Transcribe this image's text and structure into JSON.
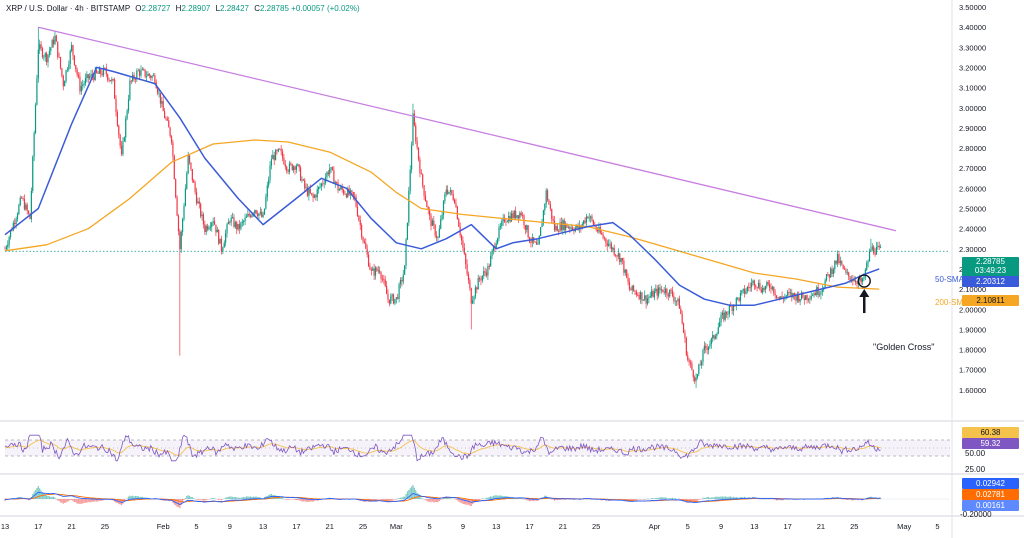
{
  "legend": {
    "symbol": "XRP / U.S. Dollar · 4h · BITSTAMP",
    "o_label": "O",
    "o": "2.28727",
    "h_label": "H",
    "h": "2.28907",
    "l_label": "L",
    "l": "2.28427",
    "c_label": "C",
    "c": "2.28785",
    "change": "+0.00057 (+0.02%)"
  },
  "price_tags": {
    "last_price": "2.28785",
    "countdown": "03:49:23",
    "sma50": "2.20312",
    "sma200": "2.10811"
  },
  "annotations": {
    "sma50": "50-SMA",
    "sma200": "200-SMA",
    "golden_cross": "\"Golden Cross\""
  },
  "rsi_tags": {
    "a": "60.38",
    "b": "59.32",
    "mid": "50.00",
    "low": "25.00"
  },
  "macd_tags": {
    "a": "0.02942",
    "b": "0.02781",
    "c": "0.00161",
    "low": "-0.20000"
  },
  "colors": {
    "up": "#089981",
    "down": "#f23645",
    "sma50": "#3a5bd9",
    "sma200": "#f5a623",
    "trendline": "#c77ee0",
    "rsi": "#7e57c2",
    "rsi_ma": "#f5c24c",
    "macd": "#2962ff",
    "signal": "#ff6d00",
    "last": "#089981"
  },
  "chart_data": {
    "type": "candlestick",
    "y_axis": {
      "range": [
        1.5,
        3.5
      ],
      "ticks": [
        "3.50000",
        "3.40000",
        "3.30000",
        "3.20000",
        "3.10000",
        "3.00000",
        "2.90000",
        "2.80000",
        "2.70000",
        "2.60000",
        "2.50000",
        "2.40000",
        "2.30000",
        "2.20000",
        "2.10000",
        "2.00000",
        "1.90000",
        "1.80000",
        "1.70000",
        "1.60000"
      ]
    },
    "x_axis": {
      "ticks": [
        {
          "label": "13",
          "d": 0
        },
        {
          "label": "17",
          "d": 4
        },
        {
          "label": "21",
          "d": 8
        },
        {
          "label": "25",
          "d": 12
        },
        {
          "label": "Feb",
          "d": 19
        },
        {
          "label": "5",
          "d": 23
        },
        {
          "label": "9",
          "d": 27
        },
        {
          "label": "13",
          "d": 31
        },
        {
          "label": "17",
          "d": 35
        },
        {
          "label": "21",
          "d": 39
        },
        {
          "label": "25",
          "d": 43
        },
        {
          "label": "Mar",
          "d": 47
        },
        {
          "label": "5",
          "d": 51
        },
        {
          "label": "9",
          "d": 55
        },
        {
          "label": "13",
          "d": 59
        },
        {
          "label": "17",
          "d": 63
        },
        {
          "label": "21",
          "d": 67
        },
        {
          "label": "25",
          "d": 71
        },
        {
          "label": "Apr",
          "d": 78
        },
        {
          "label": "5",
          "d": 82
        },
        {
          "label": "9",
          "d": 86
        },
        {
          "label": "13",
          "d": 90
        },
        {
          "label": "17",
          "d": 94
        },
        {
          "label": "21",
          "d": 98
        },
        {
          "label": "25",
          "d": 102
        },
        {
          "label": "May",
          "d": 108
        },
        {
          "label": "5",
          "d": 112
        }
      ]
    },
    "price_path": [
      [
        0,
        2.3
      ],
      [
        2,
        2.55
      ],
      [
        3,
        2.45
      ],
      [
        4,
        3.3
      ],
      [
        5,
        3.25
      ],
      [
        6,
        3.35
      ],
      [
        7,
        3.12
      ],
      [
        8,
        3.3
      ],
      [
        9,
        3.1
      ],
      [
        10,
        3.15
      ],
      [
        12,
        3.18
      ],
      [
        13,
        3.12
      ],
      [
        14,
        2.75
      ],
      [
        15,
        3.12
      ],
      [
        16,
        3.18
      ],
      [
        18,
        3.15
      ],
      [
        19,
        2.98
      ],
      [
        20,
        2.85
      ],
      [
        21,
        2.3
      ],
      [
        22,
        2.75
      ],
      [
        23,
        2.55
      ],
      [
        24,
        2.4
      ],
      [
        25,
        2.45
      ],
      [
        26,
        2.3
      ],
      [
        27,
        2.45
      ],
      [
        28,
        2.4
      ],
      [
        30,
        2.5
      ],
      [
        31,
        2.45
      ],
      [
        32,
        2.75
      ],
      [
        33,
        2.78
      ],
      [
        34,
        2.7
      ],
      [
        35,
        2.72
      ],
      [
        36,
        2.6
      ],
      [
        37,
        2.55
      ],
      [
        38,
        2.62
      ],
      [
        39,
        2.7
      ],
      [
        40,
        2.6
      ],
      [
        41,
        2.58
      ],
      [
        42,
        2.55
      ],
      [
        43,
        2.35
      ],
      [
        44,
        2.18
      ],
      [
        45,
        2.2
      ],
      [
        46,
        2.05
      ],
      [
        47,
        2.05
      ],
      [
        48,
        2.2
      ],
      [
        49,
        2.95
      ],
      [
        50,
        2.65
      ],
      [
        51,
        2.45
      ],
      [
        52,
        2.35
      ],
      [
        53,
        2.6
      ],
      [
        54,
        2.55
      ],
      [
        55,
        2.3
      ],
      [
        56,
        2.05
      ],
      [
        57,
        2.15
      ],
      [
        58,
        2.2
      ],
      [
        59,
        2.35
      ],
      [
        60,
        2.45
      ],
      [
        62,
        2.48
      ],
      [
        63,
        2.35
      ],
      [
        64,
        2.3
      ],
      [
        65,
        2.58
      ],
      [
        66,
        2.4
      ],
      [
        67,
        2.42
      ],
      [
        69,
        2.4
      ],
      [
        70,
        2.47
      ],
      [
        71,
        2.4
      ],
      [
        72,
        2.35
      ],
      [
        74,
        2.25
      ],
      [
        75,
        2.1
      ],
      [
        76,
        2.08
      ],
      [
        77,
        2.05
      ],
      [
        78,
        2.08
      ],
      [
        79,
        2.1
      ],
      [
        80,
        2.08
      ],
      [
        81,
        2.02
      ],
      [
        82,
        1.75
      ],
      [
        83,
        1.65
      ],
      [
        84,
        1.8
      ],
      [
        85,
        1.85
      ],
      [
        86,
        1.95
      ],
      [
        87,
        2.0
      ],
      [
        88,
        2.05
      ],
      [
        90,
        2.14
      ],
      [
        91,
        2.1
      ],
      [
        92,
        2.12
      ],
      [
        93,
        2.05
      ],
      [
        94,
        2.07
      ],
      [
        96,
        2.06
      ],
      [
        98,
        2.1
      ],
      [
        100,
        2.25
      ],
      [
        101,
        2.17
      ],
      [
        102,
        2.15
      ],
      [
        103,
        2.13
      ],
      [
        104,
        2.3
      ],
      [
        105,
        2.29
      ]
    ],
    "wicks": [
      {
        "d": 4,
        "high": 3.4
      },
      {
        "d": 21,
        "low": 1.77
      },
      {
        "d": 49,
        "high": 3.02
      },
      {
        "d": 56,
        "low": 1.9
      },
      {
        "d": 83,
        "low": 1.61
      },
      {
        "d": 104,
        "high": 2.35
      }
    ],
    "sma50": [
      [
        0,
        2.37
      ],
      [
        4,
        2.5
      ],
      [
        8,
        2.92
      ],
      [
        11,
        3.2
      ],
      [
        13,
        3.18
      ],
      [
        18,
        3.12
      ],
      [
        21,
        2.95
      ],
      [
        24,
        2.75
      ],
      [
        28,
        2.55
      ],
      [
        31,
        2.42
      ],
      [
        35,
        2.55
      ],
      [
        38,
        2.65
      ],
      [
        41,
        2.6
      ],
      [
        44,
        2.45
      ],
      [
        47,
        2.33
      ],
      [
        50,
        2.3
      ],
      [
        53,
        2.35
      ],
      [
        56,
        2.42
      ],
      [
        59,
        2.3
      ],
      [
        61,
        2.33
      ],
      [
        64,
        2.35
      ],
      [
        67,
        2.38
      ],
      [
        70,
        2.41
      ],
      [
        73,
        2.43
      ],
      [
        75,
        2.37
      ],
      [
        78,
        2.25
      ],
      [
        81,
        2.12
      ],
      [
        84,
        2.05
      ],
      [
        87,
        2.02
      ],
      [
        90,
        2.02
      ],
      [
        94,
        2.06
      ],
      [
        98,
        2.1
      ],
      [
        101,
        2.13
      ],
      [
        103,
        2.17
      ],
      [
        105,
        2.2
      ]
    ],
    "sma200": [
      [
        0,
        2.29
      ],
      [
        5,
        2.32
      ],
      [
        10,
        2.4
      ],
      [
        15,
        2.55
      ],
      [
        20,
        2.73
      ],
      [
        25,
        2.82
      ],
      [
        30,
        2.84
      ],
      [
        34,
        2.83
      ],
      [
        39,
        2.78
      ],
      [
        44,
        2.68
      ],
      [
        47,
        2.58
      ],
      [
        50,
        2.5
      ],
      [
        55,
        2.47
      ],
      [
        60,
        2.45
      ],
      [
        65,
        2.43
      ],
      [
        70,
        2.41
      ],
      [
        75,
        2.36
      ],
      [
        80,
        2.3
      ],
      [
        85,
        2.24
      ],
      [
        90,
        2.18
      ],
      [
        95,
        2.15
      ],
      [
        100,
        2.11
      ],
      [
        105,
        2.1
      ]
    ],
    "trendline": [
      [
        4,
        3.4
      ],
      [
        107,
        2.39
      ]
    ],
    "rsi": {
      "range": [
        0,
        100
      ],
      "ticks": [
        "50.00",
        "25.00"
      ],
      "overbought": 70,
      "oversold": 30,
      "ma_approx": 51
    },
    "macd": {
      "ticks": [
        "-0.20000"
      ]
    }
  }
}
